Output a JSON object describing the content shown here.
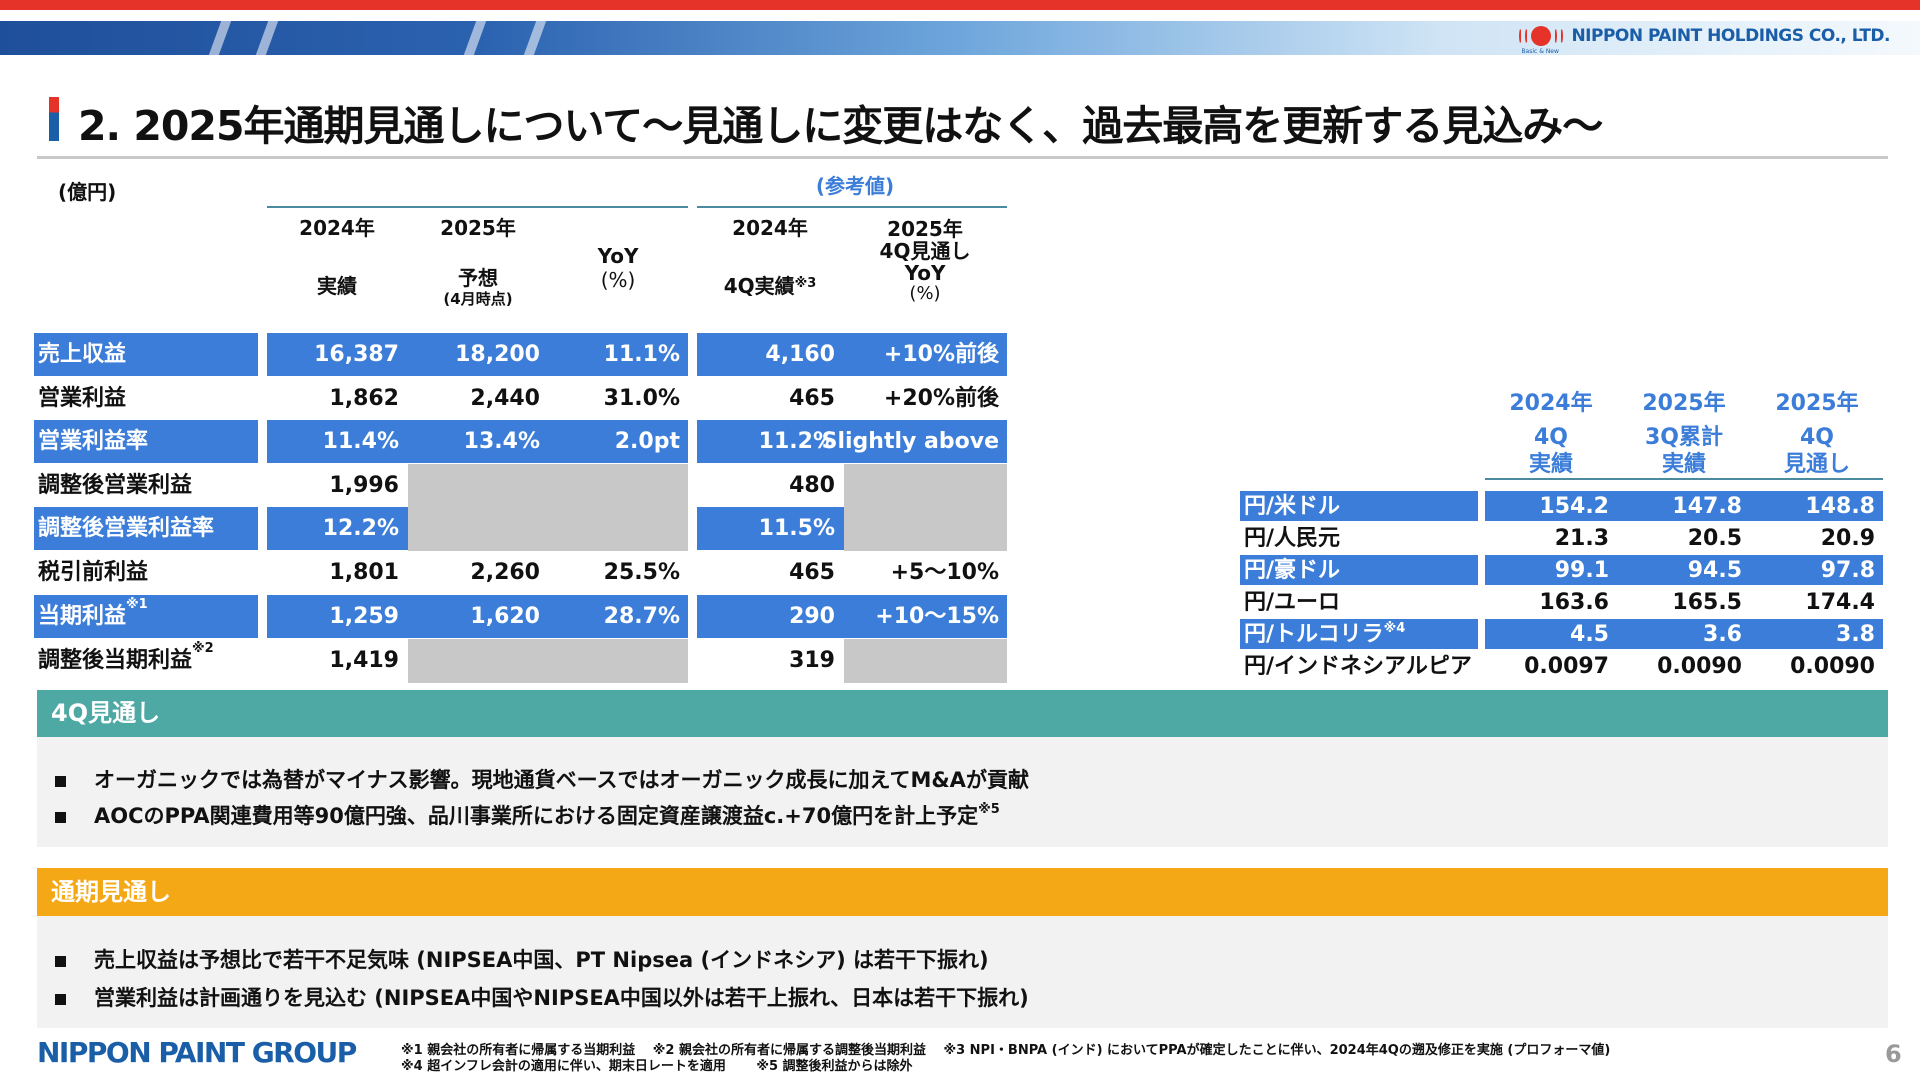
{
  "header": {
    "company": "NIPPON PAINT HOLDINGS CO., LTD.",
    "tagline": "Basic & New",
    "title": "2. 2025年通期見通しについて～見通しに変更はなく、過去最高を更新する見込み～",
    "colors": {
      "red": "#e5332a",
      "brand_blue": "#1b5ea8",
      "row_blue": "#3b7dd8",
      "teal": "#4ea8a3",
      "orange": "#f5a815"
    }
  },
  "main_table": {
    "unit": "(億円)",
    "reference_label": "(参考値)",
    "columns": [
      {
        "line1": "2024年",
        "line2": "実績"
      },
      {
        "line1": "2025年",
        "line2": "予想",
        "line3": "(4月時点)"
      },
      {
        "line1": "YoY",
        "line2": "(%)"
      },
      {
        "line1": "2024年",
        "line2": "4Q実績",
        "note": "※3"
      },
      {
        "line1": "2025年",
        "line2": "4Q見通し",
        "line3": "YoY",
        "line4": "(%)"
      }
    ],
    "rows": [
      {
        "label": "売上収益",
        "note": "",
        "highlight": true,
        "values": [
          "16,387",
          "18,200",
          "11.1%",
          "4,160",
          "+10%前後"
        ]
      },
      {
        "label": "営業利益",
        "note": "",
        "highlight": false,
        "values": [
          "1,862",
          "2,440",
          "31.0%",
          "465",
          "+20%前後"
        ]
      },
      {
        "label": "営業利益率",
        "note": "",
        "highlight": true,
        "values": [
          "11.4%",
          "13.4%",
          "2.0pt",
          "11.2%",
          "Slightly above"
        ]
      },
      {
        "label": "調整後営業利益",
        "note": "",
        "highlight": false,
        "values": [
          "1,996",
          null,
          null,
          "480",
          null
        ]
      },
      {
        "label": "調整後営業利益率",
        "note": "",
        "highlight": true,
        "values": [
          "12.2%",
          null,
          null,
          "11.5%",
          null
        ]
      },
      {
        "label": "税引前利益",
        "note": "",
        "highlight": false,
        "values": [
          "1,801",
          "2,260",
          "25.5%",
          "465",
          "+5～10%"
        ]
      },
      {
        "label": "当期利益",
        "note": "※1",
        "highlight": true,
        "values": [
          "1,259",
          "1,620",
          "28.7%",
          "290",
          "+10～15%"
        ]
      },
      {
        "label": "調整後当期利益",
        "note": "※2",
        "highlight": false,
        "values": [
          "1,419",
          null,
          null,
          "319",
          null
        ]
      }
    ]
  },
  "fx_table": {
    "columns": [
      {
        "line1": "2024年",
        "line2": "4Q",
        "line3": "実績"
      },
      {
        "line1": "2025年",
        "line2": "3Q累計",
        "line3": "実績"
      },
      {
        "line1": "2025年",
        "line2": "4Q",
        "line3": "見通し"
      }
    ],
    "rows": [
      {
        "label": "円/米ドル",
        "note": "",
        "highlight": true,
        "values": [
          "154.2",
          "147.8",
          "148.8"
        ]
      },
      {
        "label": "円/人民元",
        "note": "",
        "highlight": false,
        "values": [
          "21.3",
          "20.5",
          "20.9"
        ]
      },
      {
        "label": "円/豪ドル",
        "note": "",
        "highlight": true,
        "values": [
          "99.1",
          "94.5",
          "97.8"
        ]
      },
      {
        "label": "円/ユーロ",
        "note": "",
        "highlight": false,
        "values": [
          "163.6",
          "165.5",
          "174.4"
        ]
      },
      {
        "label": "円/トルコリラ",
        "note": "※4",
        "highlight": true,
        "values": [
          "4.5",
          "3.6",
          "3.8"
        ]
      },
      {
        "label": "円/インドネシアルピア",
        "note": "",
        "highlight": false,
        "values": [
          "0.0097",
          "0.0090",
          "0.0090"
        ]
      }
    ]
  },
  "q4_outlook": {
    "heading": "4Q見通し",
    "bullets": [
      "オーガニックでは為替がマイナス影響。現地通貨ベースではオーガニック成長に加えてM&Aが貢献",
      "AOCのPPA関連費用等90億円強、品川事業所における固定資産譲渡益c.+70億円を計上予定"
    ],
    "bullet2_note": "※5"
  },
  "full_year_outlook": {
    "heading": "通期見通し",
    "bullets": [
      "売上収益は予想比で若干不足気味 (NIPSEA中国、PT Nipsea (インドネシア) は若干下振れ)",
      "営業利益は計画通りを見込む (NIPSEA中国やNIPSEA中国以外は若干上振れ、日本は若干下振れ)"
    ]
  },
  "footer": {
    "group_logo": "NIPPON PAINT GROUP",
    "footnote_line1": "※1 親会社の所有者に帰属する当期利益　 ※2 親会社の所有者に帰属する調整後当期利益　 ※3 NPI・BNPA (インド) においてPPAが確定したことに伴い、2024年4Qの遡及修正を実施 (プロフォーマ値)",
    "footnote_line2": "※4 超インフレ会計の適用に伴い、期末日レートを適用　　 ※5 調整後利益からは除外",
    "page_number": "6"
  }
}
